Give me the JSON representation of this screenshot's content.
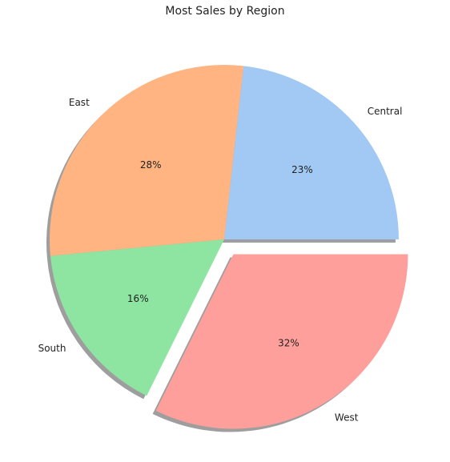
{
  "chart_data": {
    "type": "pie",
    "title": "Most Sales by Region",
    "labels": [
      "Central",
      "East",
      "South",
      "West"
    ],
    "values": [
      23,
      28,
      16,
      32
    ],
    "percent_labels": [
      "23%",
      "28%",
      "16%",
      "32%"
    ],
    "colors": [
      "#a1c9f4",
      "#ffb482",
      "#8de5a1",
      "#ff9f9b"
    ],
    "explode": [
      0,
      0,
      0,
      0.1
    ],
    "shadow": true,
    "start_angle_deg": 0,
    "direction": "counterclockwise"
  }
}
